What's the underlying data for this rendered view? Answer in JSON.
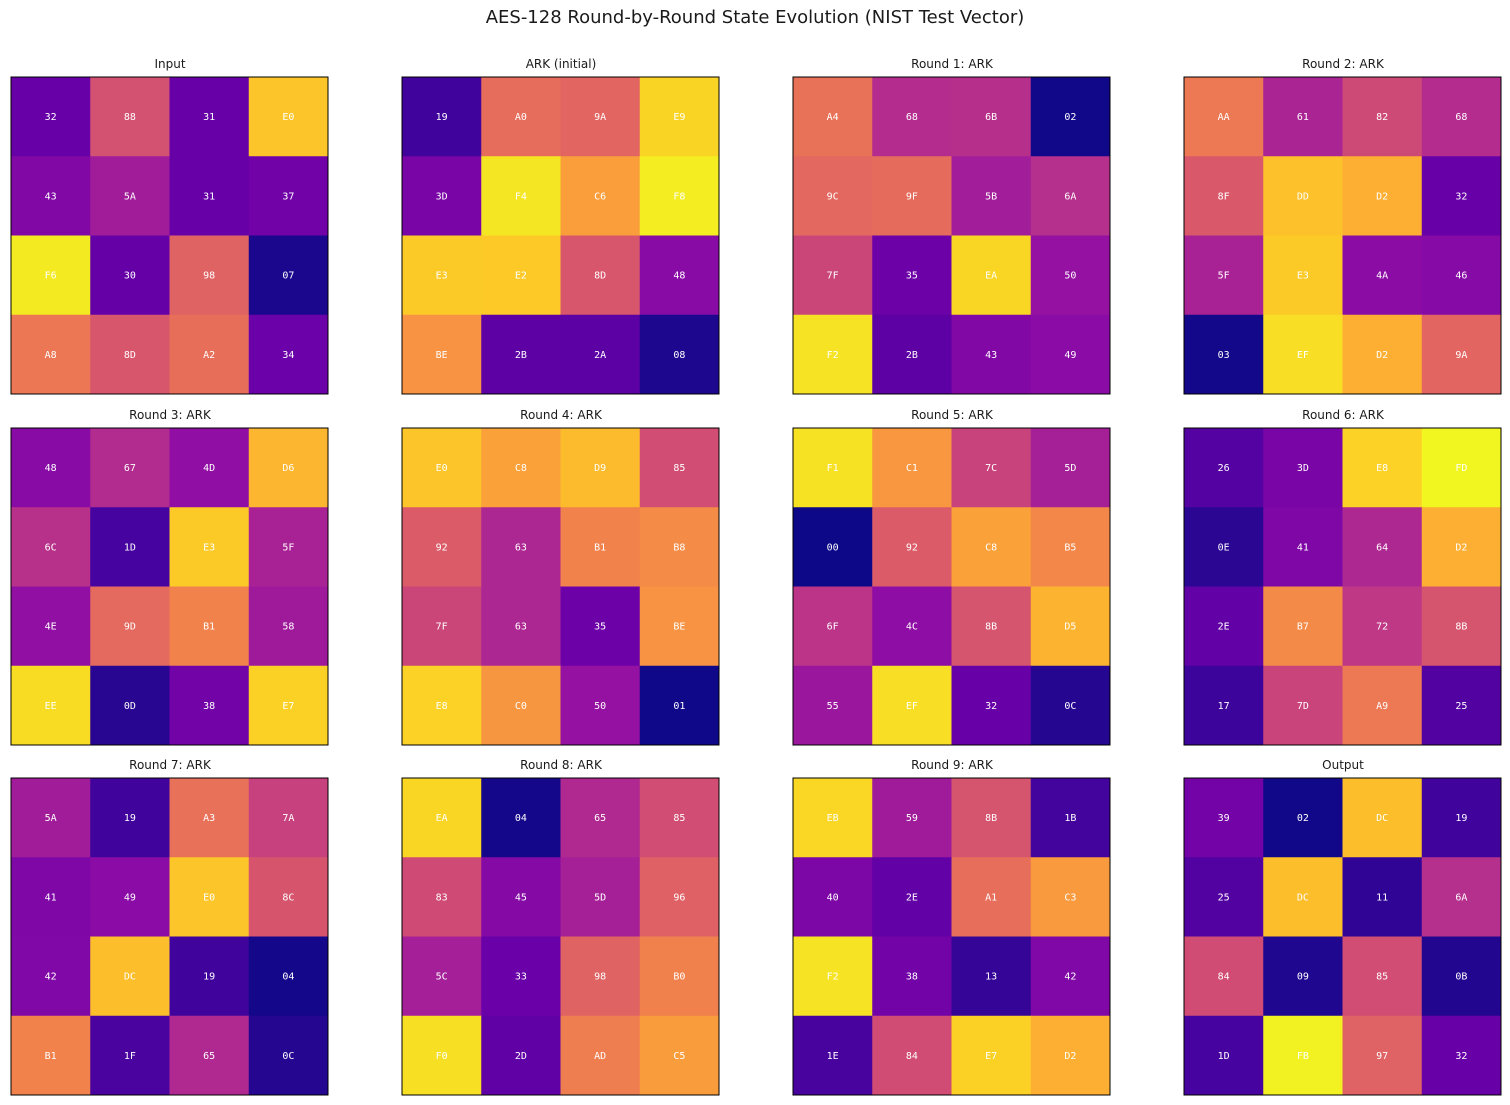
{
  "title": "AES-128 Round-by-Round State Evolution (NIST Test Vector)",
  "chart_data": {
    "type": "heatmap",
    "colormap": "plasma",
    "value_range": [
      0,
      255
    ],
    "cell_text_color": "#ffffff",
    "panels": [
      {
        "title": "Input",
        "grid": [
          [
            "32",
            "88",
            "31",
            "E0"
          ],
          [
            "43",
            "5A",
            "31",
            "37"
          ],
          [
            "F6",
            "30",
            "98",
            "07"
          ],
          [
            "A8",
            "8D",
            "A2",
            "34"
          ]
        ]
      },
      {
        "title": "ARK (initial)",
        "grid": [
          [
            "19",
            "A0",
            "9A",
            "E9"
          ],
          [
            "3D",
            "F4",
            "C6",
            "F8"
          ],
          [
            "E3",
            "E2",
            "8D",
            "48"
          ],
          [
            "BE",
            "2B",
            "2A",
            "08"
          ]
        ]
      },
      {
        "title": "Round 1: ARK",
        "grid": [
          [
            "A4",
            "68",
            "6B",
            "02"
          ],
          [
            "9C",
            "9F",
            "5B",
            "6A"
          ],
          [
            "7F",
            "35",
            "EA",
            "50"
          ],
          [
            "F2",
            "2B",
            "43",
            "49"
          ]
        ]
      },
      {
        "title": "Round 2: ARK",
        "grid": [
          [
            "AA",
            "61",
            "82",
            "68"
          ],
          [
            "8F",
            "DD",
            "D2",
            "32"
          ],
          [
            "5F",
            "E3",
            "4A",
            "46"
          ],
          [
            "03",
            "EF",
            "D2",
            "9A"
          ]
        ]
      },
      {
        "title": "Round 3: ARK",
        "grid": [
          [
            "48",
            "67",
            "4D",
            "D6"
          ],
          [
            "6C",
            "1D",
            "E3",
            "5F"
          ],
          [
            "4E",
            "9D",
            "B1",
            "58"
          ],
          [
            "EE",
            "0D",
            "38",
            "E7"
          ]
        ]
      },
      {
        "title": "Round 4: ARK",
        "grid": [
          [
            "E0",
            "C8",
            "D9",
            "85"
          ],
          [
            "92",
            "63",
            "B1",
            "B8"
          ],
          [
            "7F",
            "63",
            "35",
            "BE"
          ],
          [
            "E8",
            "C0",
            "50",
            "01"
          ]
        ]
      },
      {
        "title": "Round 5: ARK",
        "grid": [
          [
            "F1",
            "C1",
            "7C",
            "5D"
          ],
          [
            "00",
            "92",
            "C8",
            "B5"
          ],
          [
            "6F",
            "4C",
            "8B",
            "D5"
          ],
          [
            "55",
            "EF",
            "32",
            "0C"
          ]
        ]
      },
      {
        "title": "Round 6: ARK",
        "grid": [
          [
            "26",
            "3D",
            "E8",
            "FD"
          ],
          [
            "0E",
            "41",
            "64",
            "D2"
          ],
          [
            "2E",
            "B7",
            "72",
            "8B"
          ],
          [
            "17",
            "7D",
            "A9",
            "25"
          ]
        ]
      },
      {
        "title": "Round 7: ARK",
        "grid": [
          [
            "5A",
            "19",
            "A3",
            "7A"
          ],
          [
            "41",
            "49",
            "E0",
            "8C"
          ],
          [
            "42",
            "DC",
            "19",
            "04"
          ],
          [
            "B1",
            "1F",
            "65",
            "0C"
          ]
        ]
      },
      {
        "title": "Round 8: ARK",
        "grid": [
          [
            "EA",
            "04",
            "65",
            "85"
          ],
          [
            "83",
            "45",
            "5D",
            "96"
          ],
          [
            "5C",
            "33",
            "98",
            "B0"
          ],
          [
            "F0",
            "2D",
            "AD",
            "C5"
          ]
        ]
      },
      {
        "title": "Round 9: ARK",
        "grid": [
          [
            "EB",
            "59",
            "8B",
            "1B"
          ],
          [
            "40",
            "2E",
            "A1",
            "C3"
          ],
          [
            "F2",
            "38",
            "13",
            "42"
          ],
          [
            "1E",
            "84",
            "E7",
            "D2"
          ]
        ]
      },
      {
        "title": "Output",
        "grid": [
          [
            "39",
            "02",
            "DC",
            "19"
          ],
          [
            "25",
            "DC",
            "11",
            "6A"
          ],
          [
            "84",
            "09",
            "85",
            "0B"
          ],
          [
            "1D",
            "FB",
            "97",
            "32"
          ]
        ]
      }
    ]
  }
}
